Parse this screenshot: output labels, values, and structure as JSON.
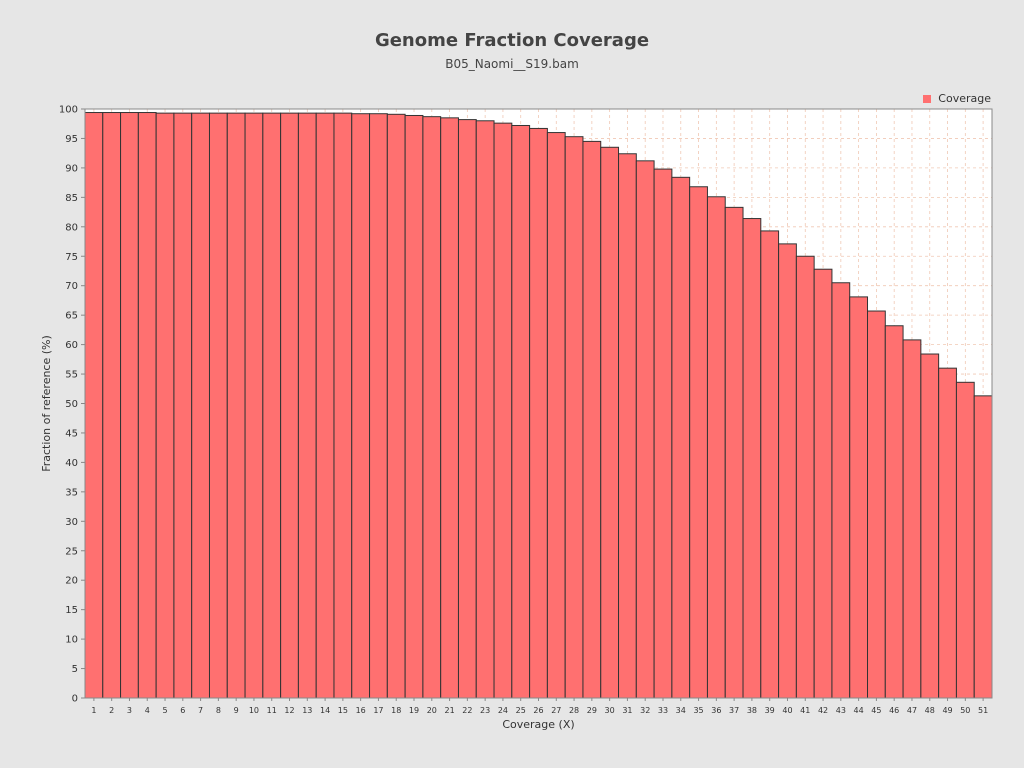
{
  "chart_data": {
    "type": "bar",
    "title": "Genome Fraction Coverage",
    "subtitle": "B05_Naomi__S19.bam",
    "xlabel": "Coverage (X)",
    "ylabel": "Fraction of reference (%)",
    "ylim": [
      0,
      100
    ],
    "y_ticks": [
      0,
      5,
      10,
      15,
      20,
      25,
      30,
      35,
      40,
      45,
      50,
      55,
      60,
      65,
      70,
      75,
      80,
      85,
      90,
      95,
      100
    ],
    "grid": true,
    "legend_position": "top-right",
    "series": [
      {
        "name": "Coverage",
        "color": "#ff7070",
        "values": [
          99.4,
          99.4,
          99.4,
          99.4,
          99.3,
          99.3,
          99.3,
          99.3,
          99.3,
          99.3,
          99.3,
          99.3,
          99.3,
          99.3,
          99.3,
          99.2,
          99.2,
          99.1,
          98.9,
          98.7,
          98.5,
          98.2,
          98.0,
          97.6,
          97.2,
          96.7,
          96.0,
          95.3,
          94.5,
          93.5,
          92.4,
          91.2,
          89.8,
          88.4,
          86.8,
          85.1,
          83.3,
          81.4,
          79.3,
          77.1,
          75.0,
          72.8,
          70.5,
          68.1,
          65.7,
          63.2,
          60.8,
          58.4,
          56.0,
          53.6,
          51.3
        ]
      }
    ],
    "categories": [
      "1",
      "2",
      "3",
      "4",
      "5",
      "6",
      "7",
      "8",
      "9",
      "10",
      "11",
      "12",
      "13",
      "14",
      "15",
      "16",
      "17",
      "18",
      "19",
      "20",
      "21",
      "22",
      "23",
      "24",
      "25",
      "26",
      "27",
      "28",
      "29",
      "30",
      "31",
      "32",
      "33",
      "34",
      "35",
      "36",
      "37",
      "38",
      "39",
      "40",
      "41",
      "42",
      "43",
      "44",
      "45",
      "46",
      "47",
      "48",
      "49",
      "50",
      "51"
    ]
  },
  "colors": {
    "background": "#e6e6e6",
    "plot_background": "#ffffff",
    "grid": "#f0c8b4",
    "bar_fill": "#ff7070",
    "bar_stroke": "#333333"
  }
}
